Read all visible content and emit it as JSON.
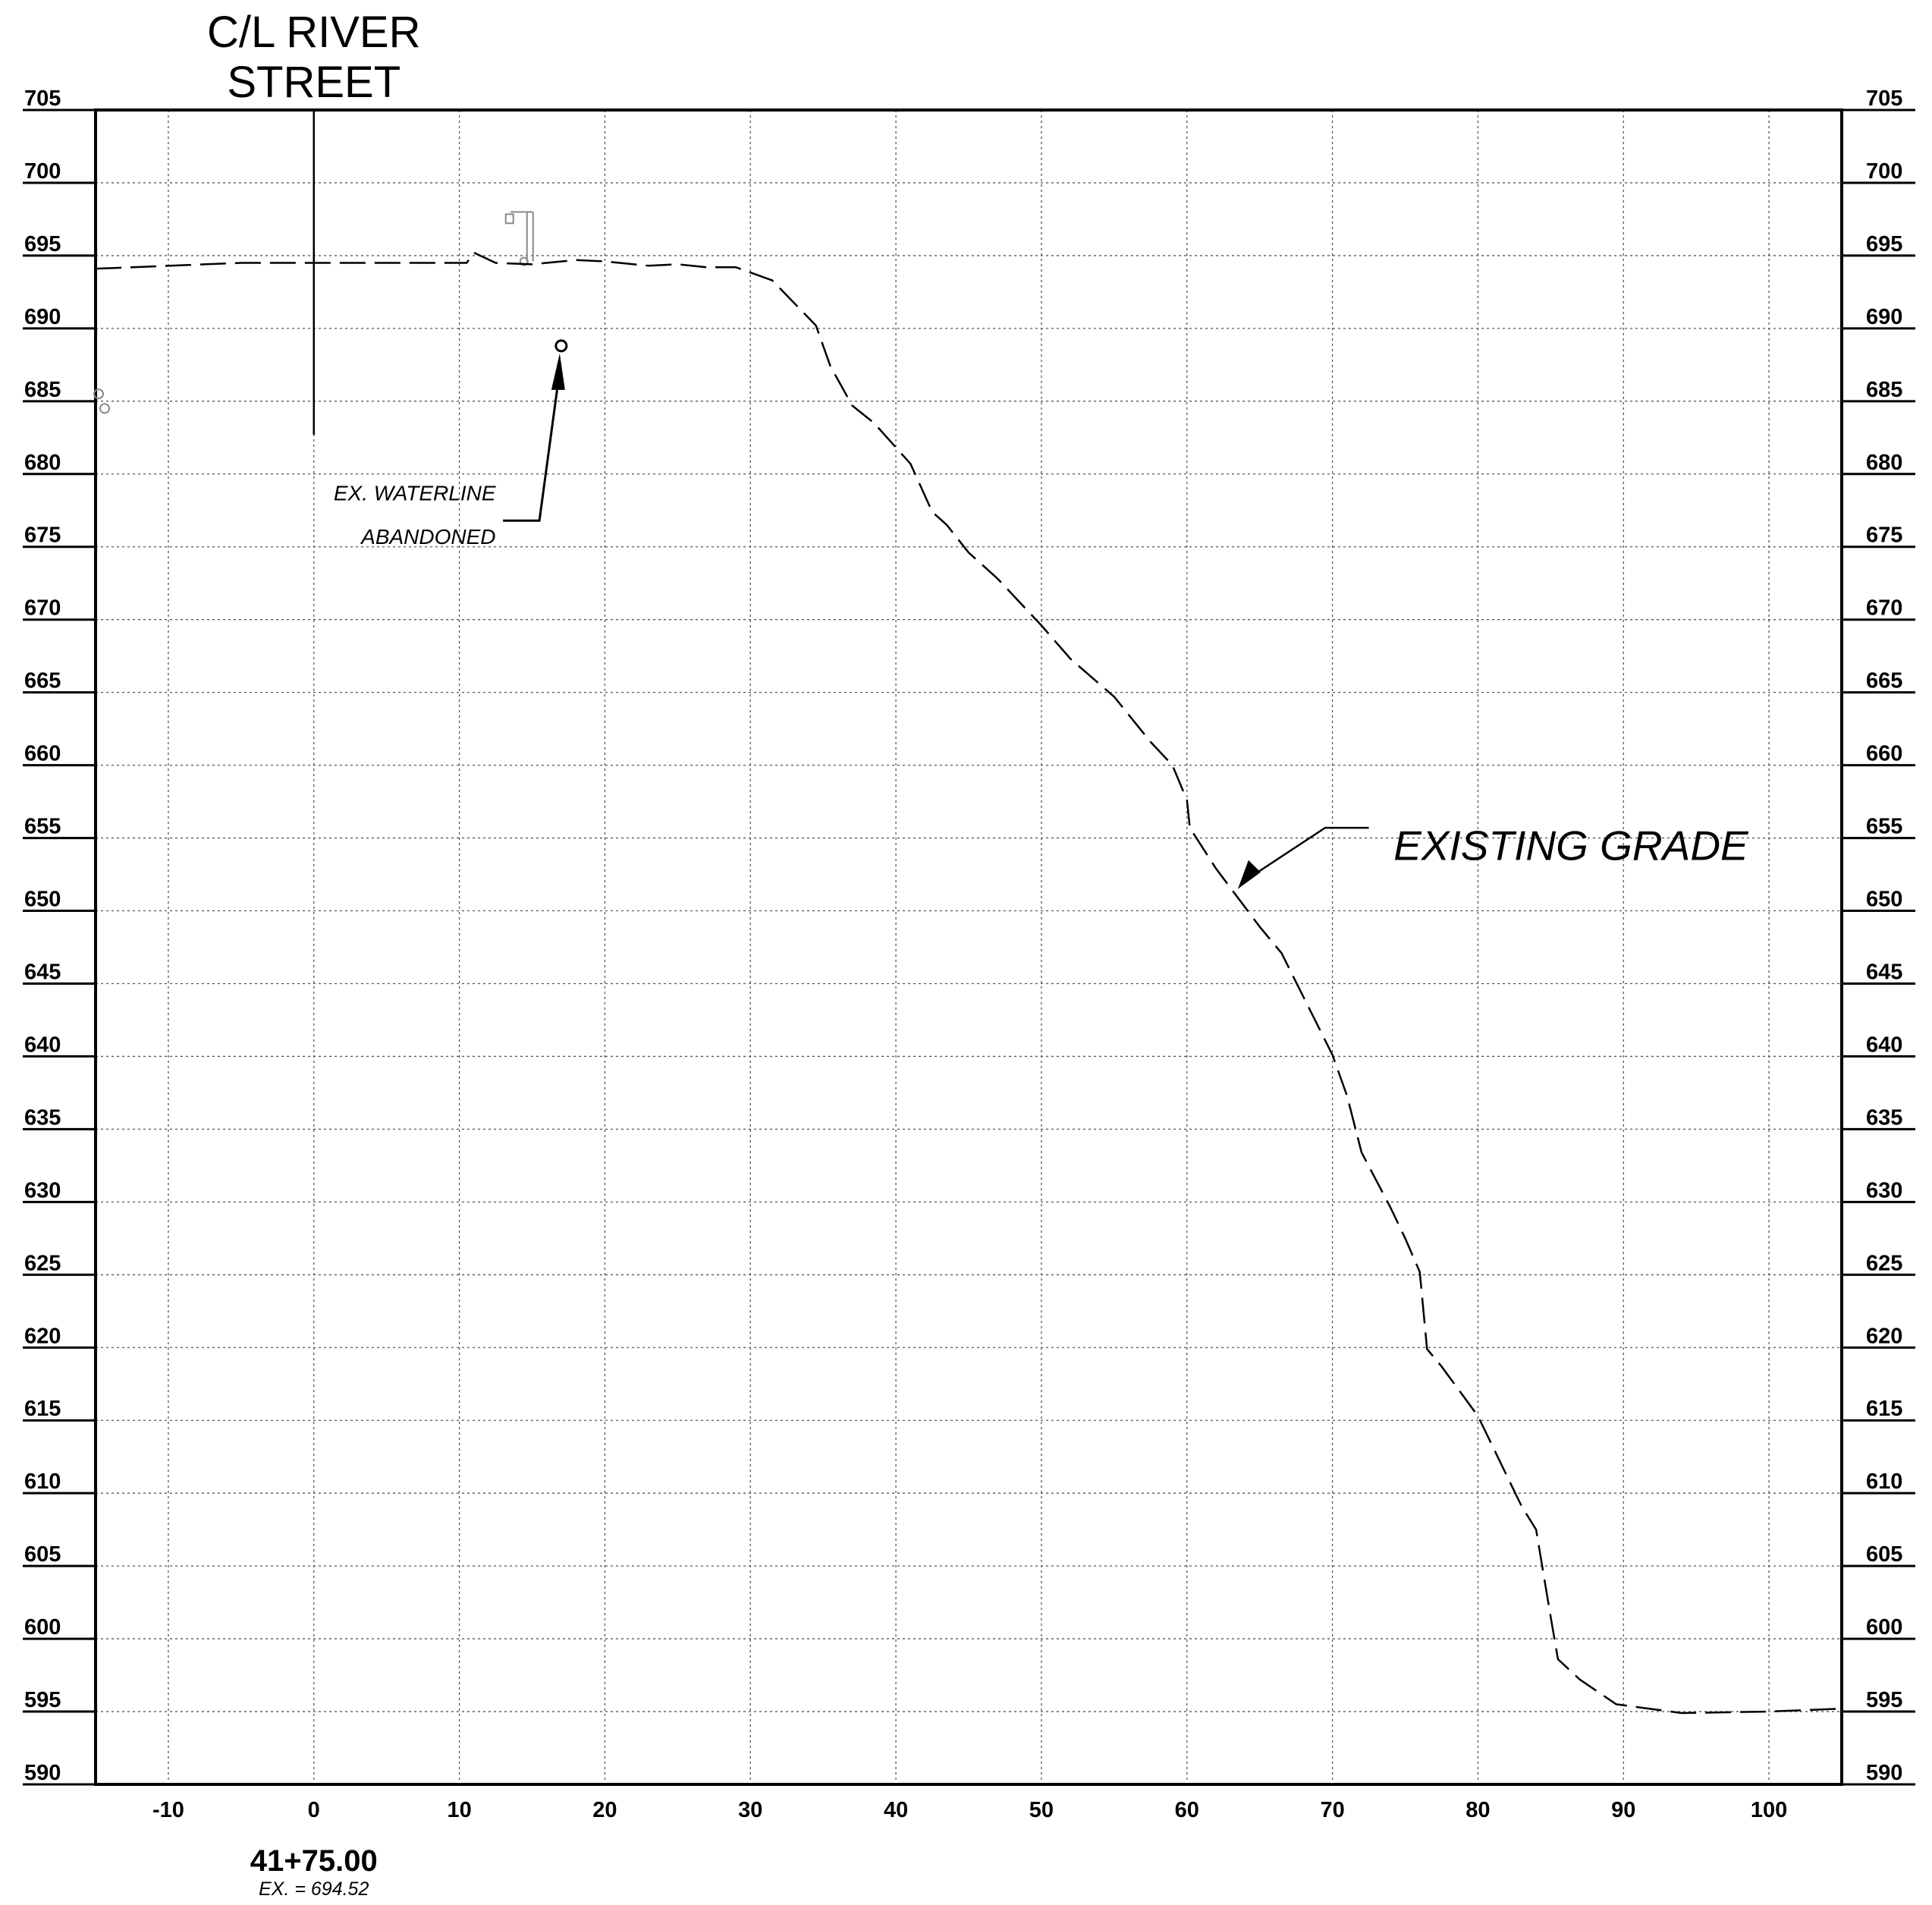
{
  "chart_data": {
    "type": "line",
    "x_ticks": [
      -10,
      0,
      10,
      20,
      30,
      40,
      50,
      60,
      70,
      80,
      90,
      100
    ],
    "y_ticks": [
      590,
      595,
      600,
      605,
      610,
      615,
      620,
      625,
      630,
      635,
      640,
      645,
      650,
      655,
      660,
      665,
      670,
      675,
      680,
      685,
      690,
      695,
      700,
      705
    ],
    "xlim": [
      -15,
      105
    ],
    "ylim": [
      590,
      705
    ],
    "grid": true,
    "centerline": {
      "label_line1": "C/L RIVER",
      "label_line2": "STREET",
      "x": 0,
      "y_top": 705,
      "y_bottom": 682.7
    },
    "series": [
      {
        "label": "EXISTING GRADE",
        "style": "dashed",
        "points": [
          [
            -15,
            694.1
          ],
          [
            -5,
            694.5
          ],
          [
            0,
            694.5
          ],
          [
            10.5,
            694.5
          ],
          [
            11,
            695.2
          ],
          [
            12.5,
            694.5
          ],
          [
            15,
            694.4
          ],
          [
            18,
            694.7
          ],
          [
            20,
            694.6
          ],
          [
            23,
            694.3
          ],
          [
            25,
            694.4
          ],
          [
            27,
            694.2
          ],
          [
            29,
            694.2
          ],
          [
            31.5,
            693.3
          ],
          [
            34.5,
            690.2
          ],
          [
            35.5,
            687.4
          ],
          [
            37,
            684.7
          ],
          [
            38.5,
            683.5
          ],
          [
            41,
            680.7
          ],
          [
            42.5,
            677.4
          ],
          [
            43.5,
            676.5
          ],
          [
            45,
            674.6
          ],
          [
            47,
            672.8
          ],
          [
            50,
            669.6
          ],
          [
            52,
            667.3
          ],
          [
            55,
            664.7
          ],
          [
            57.5,
            661.6
          ],
          [
            59,
            660
          ],
          [
            60,
            657.6
          ],
          [
            60.2,
            655.7
          ],
          [
            62,
            652.9
          ],
          [
            65,
            648.9
          ],
          [
            66.5,
            647.1
          ],
          [
            68.5,
            643.1
          ],
          [
            70,
            640.1
          ],
          [
            71,
            637.3
          ],
          [
            72,
            633.4
          ],
          [
            74,
            629.6
          ],
          [
            75,
            627.5
          ],
          [
            76,
            625.2
          ],
          [
            76.5,
            619.9
          ],
          [
            77.5,
            618.7
          ],
          [
            80,
            615.3
          ],
          [
            81.5,
            612.2
          ],
          [
            83,
            609.1
          ],
          [
            84,
            607.5
          ],
          [
            85,
            601.5
          ],
          [
            85.5,
            598.6
          ],
          [
            87,
            597.2
          ],
          [
            89.5,
            595.5
          ],
          [
            94,
            594.9
          ],
          [
            100,
            595
          ],
          [
            105,
            595.2
          ]
        ]
      }
    ],
    "annotations": {
      "waterline_line1": "EX. WATERLINE",
      "waterline_line2": "ABANDONED",
      "waterline_point": [
        17,
        688.8
      ],
      "grade_label": "EXISTING GRADE",
      "grade_arrow_point": [
        63.5,
        651.5
      ]
    },
    "station": "41+75.00",
    "existing_elevation": "EX. = 694.52",
    "colors": {
      "ink": "#000000",
      "grid": "#555555",
      "faint": "#888888"
    }
  }
}
